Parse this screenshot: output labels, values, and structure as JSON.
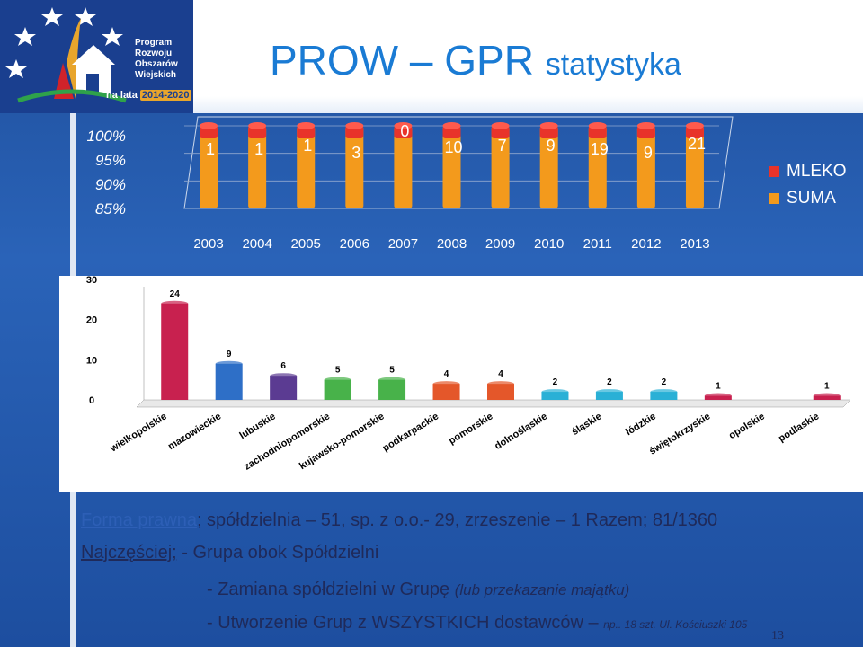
{
  "slide": {
    "title_main": "PROW – GPR",
    "title_sub": "statystyka",
    "logo_lines": [
      "Program",
      "Rozwoju",
      "Obszarów",
      "Wiejskich"
    ],
    "logo_years_prefix": "na lata",
    "logo_years": "2014-2020",
    "page_number": "13"
  },
  "footer": {
    "line1_label": "Forma prawna",
    "line1_text": "; spółdzielnia – 51, sp. z o.o.- 29, zrzeszenie – 1   Razem; 81/1360",
    "line2_label": "Najczęściej;",
    "line2_text": " - Grupa obok Spółdzielni",
    "line3_text": "- Zamiana spółdzielni w Grupę ",
    "line3_italic": "(lub przekazanie majątku)",
    "line4_text": "- Utworzenie Grup z WSZYSTKICH dostawców – ",
    "line4_small": "np.. 18 szt. Ul. Kościuszki 105"
  },
  "chart_data": [
    {
      "type": "bar",
      "stacked": "100%",
      "categories": [
        "2003",
        "2004",
        "2005",
        "2006",
        "2007",
        "2008",
        "2009",
        "2010",
        "2011",
        "2012",
        "2013"
      ],
      "series": [
        {
          "name": "MLEKO",
          "color": "#e8332a"
        },
        {
          "name": "SUMA",
          "color": "#f39a1c"
        }
      ],
      "data_labels": [
        "1",
        "1",
        "1",
        "3",
        "0",
        "10",
        "7",
        "9",
        "19",
        "9",
        "21"
      ],
      "ytick_labels": [
        "100%",
        "95%",
        "90%",
        "85%"
      ],
      "legend_position": "right"
    },
    {
      "type": "bar",
      "categories": [
        "wielkopolskie",
        "mazowieckie",
        "lubuskie",
        "zachodniopomorskie",
        "kujawsko-pomorskie",
        "podkarpackie",
        "pomorskie",
        "dolnośląskie",
        "śląskie",
        "łódzkie",
        "świętokrzyskie",
        "opolskie",
        "podlaskie"
      ],
      "values": [
        24,
        9,
        6,
        5,
        5,
        4,
        4,
        2,
        2,
        2,
        1,
        0,
        1
      ],
      "data_labels": [
        "24",
        "9",
        "6",
        "5",
        "5",
        "4",
        "4",
        "2",
        "2",
        "2",
        "1",
        "",
        "1"
      ],
      "colors": [
        "#c8214f",
        "#2e6fc7",
        "#5b3b92",
        "#48b24a",
        "#48b24a",
        "#e4572a",
        "#e4572a",
        "#2ab0d6",
        "#2ab0d6",
        "#2ab0d6",
        "#c8214f",
        "#c8214f",
        "#c8214f"
      ],
      "ylim": [
        0,
        30
      ],
      "yticks": [
        0,
        10,
        20,
        30
      ]
    }
  ]
}
